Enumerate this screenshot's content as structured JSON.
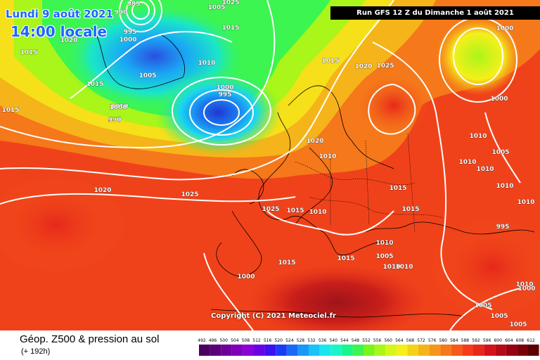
{
  "header": {
    "date": "Lundi 9 août 2021",
    "time": "14:00 locale",
    "run": "Run GFS 12 Z du Dimanche 1 août 2021"
  },
  "footer": {
    "param_title": "Géop. Z500 & pression au sol",
    "forecast_range": "(+ 192h)",
    "copyright": "Copyright (C) 2021 Meteociel.fr"
  },
  "scale": {
    "ticks": [
      "492",
      "496",
      "500",
      "504",
      "508",
      "512",
      "516",
      "520",
      "524",
      "528",
      "532",
      "536",
      "540",
      "544",
      "548",
      "552",
      "556",
      "560",
      "564",
      "568",
      "572",
      "576",
      "580",
      "584",
      "588",
      "592",
      "596",
      "600",
      "604",
      "608",
      "612"
    ],
    "colors": [
      "#4b0060",
      "#5c007a",
      "#6e0098",
      "#7f00b8",
      "#8a00d6",
      "#6a00e6",
      "#3c10f0",
      "#1a3cf5",
      "#1a6af5",
      "#1a98f5",
      "#1ac2f5",
      "#1ae6f0",
      "#1af5c8",
      "#1af58c",
      "#3cf550",
      "#78f51a",
      "#aaf51a",
      "#d6f51a",
      "#f5f01a",
      "#f5d21a",
      "#f5b41a",
      "#f5961a",
      "#f5781a",
      "#f55a1a",
      "#f53c1a",
      "#e6281a",
      "#d2141a",
      "#b40a14",
      "#96000f",
      "#78000a",
      "#5a0005"
    ]
  },
  "pressure_labels": [
    "985",
    "990",
    "995",
    "1000",
    "1005",
    "1005",
    "1010",
    "1015",
    "1020",
    "1025",
    "1015",
    "1015",
    "1010",
    "1000",
    "995",
    "1015",
    "1000",
    "995",
    "990",
    "1015",
    "1020",
    "1025",
    "1020",
    "1025",
    "1025",
    "1015",
    "1010",
    "1015",
    "1020",
    "1010",
    "1015",
    "1015",
    "1010",
    "1005",
    "1000",
    "1010",
    "1010",
    "1010",
    "1010",
    "1005",
    "1010",
    "995",
    "1000",
    "1015",
    "1010",
    "1010",
    "1010",
    "1000",
    "1005",
    "1005",
    "1005",
    "1000"
  ]
}
